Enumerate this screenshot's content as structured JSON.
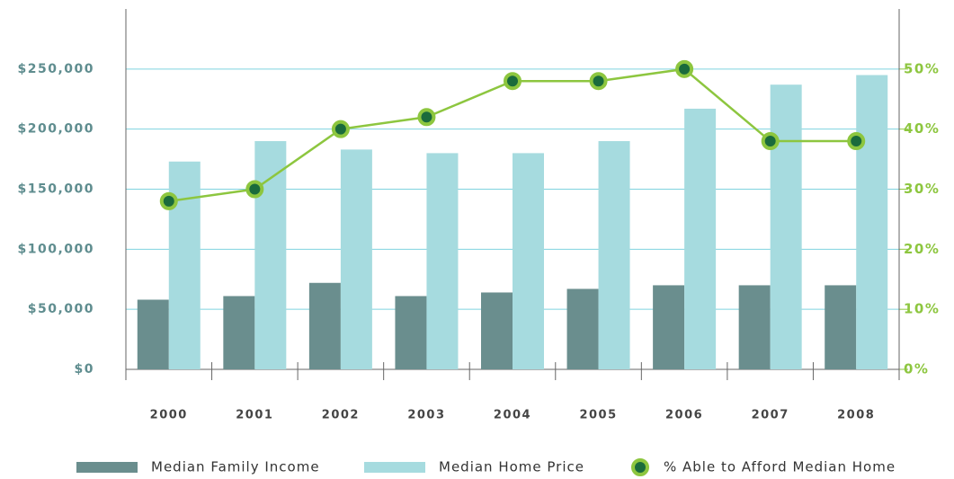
{
  "chart_data": {
    "type": "bar",
    "categories": [
      "2000",
      "2001",
      "2002",
      "2003",
      "2004",
      "2005",
      "2006",
      "2007",
      "2008"
    ],
    "series": [
      {
        "name": "Median Family Income",
        "color": "#6a8e8e",
        "values": [
          58000,
          61000,
          72000,
          61000,
          64000,
          67000,
          70000,
          70000,
          70000
        ]
      },
      {
        "name": "Median Home Price",
        "color": "#a6dbdf",
        "values": [
          173000,
          190000,
          183000,
          180000,
          180000,
          190000,
          217000,
          237000,
          245000
        ]
      },
      {
        "name": "% Able to Afford Median Home",
        "color": "#8dc63f",
        "marker_color": "#1a6b3c",
        "type": "line",
        "axis": "y2",
        "values": [
          28,
          30,
          40,
          42,
          48,
          48,
          50,
          38,
          38
        ]
      }
    ],
    "ylim": [
      0,
      300000
    ],
    "yticks": [
      {
        "value": 0,
        "label": "$0"
      },
      {
        "value": 50000,
        "label": "$50,000"
      },
      {
        "value": 100000,
        "label": "$100,000"
      },
      {
        "value": 150000,
        "label": "$150,000"
      },
      {
        "value": 200000,
        "label": "$200,000"
      },
      {
        "value": 250000,
        "label": "$250,000"
      }
    ],
    "y2lim": [
      0,
      60
    ],
    "y2ticks": [
      {
        "value": 0,
        "label": "0%"
      },
      {
        "value": 10,
        "label": "10%"
      },
      {
        "value": 20,
        "label": "20%"
      },
      {
        "value": 30,
        "label": "30%"
      },
      {
        "value": 40,
        "label": "40%"
      },
      {
        "value": 50,
        "label": "50%"
      }
    ],
    "grid": true
  }
}
